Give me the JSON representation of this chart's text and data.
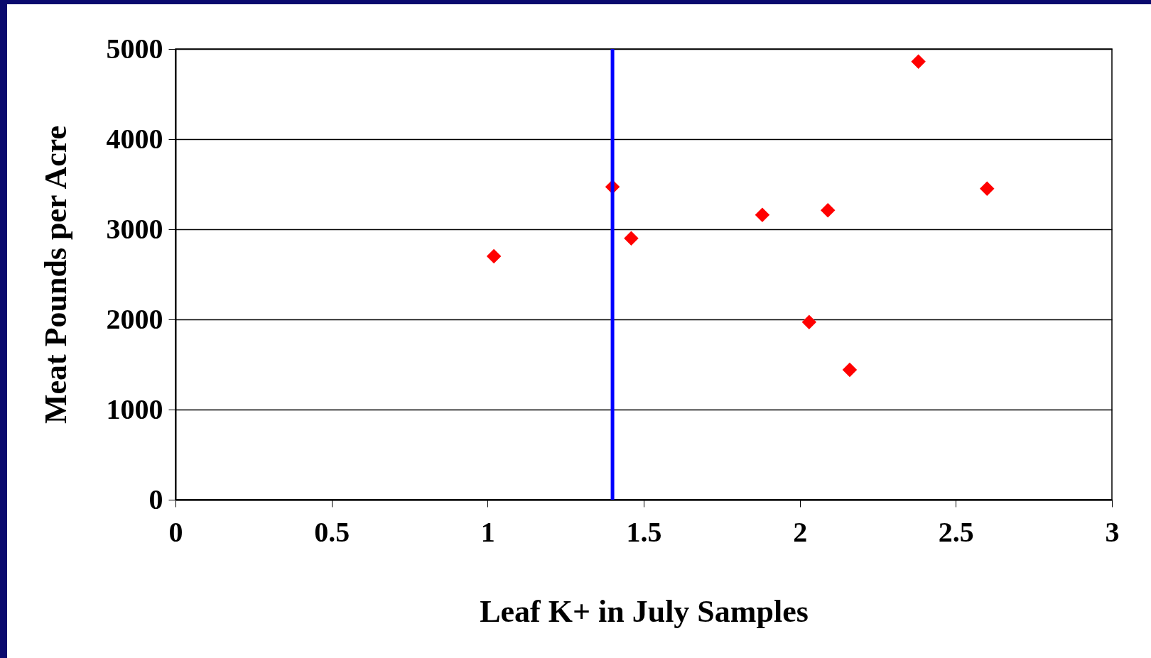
{
  "chart_data": {
    "type": "scatter",
    "xlabel": "Leaf K+ in July Samples",
    "ylabel": "Meat Pounds per Acre",
    "series": [
      {
        "color": "#ff0000",
        "x": [
          1.02,
          1.4,
          1.46,
          1.88,
          2.09,
          2.03,
          2.16,
          2.38,
          2.6
        ],
        "values": [
          2700,
          3470,
          2900,
          3160,
          3210,
          1970,
          1440,
          4860,
          3450
        ]
      }
    ],
    "marker": "diamond",
    "xlim": [
      0,
      3
    ],
    "xticks": [
      0,
      0.5,
      1,
      1.5,
      2,
      2.5,
      3
    ],
    "ylim": [
      0,
      5000
    ],
    "yticks": [
      0,
      1000,
      2000,
      3000,
      4000,
      5000
    ],
    "grid": "y",
    "ref_lines": [
      {
        "axis": "x",
        "value": 1.4,
        "color": "#0000ff",
        "line_style": "solid"
      }
    ]
  }
}
